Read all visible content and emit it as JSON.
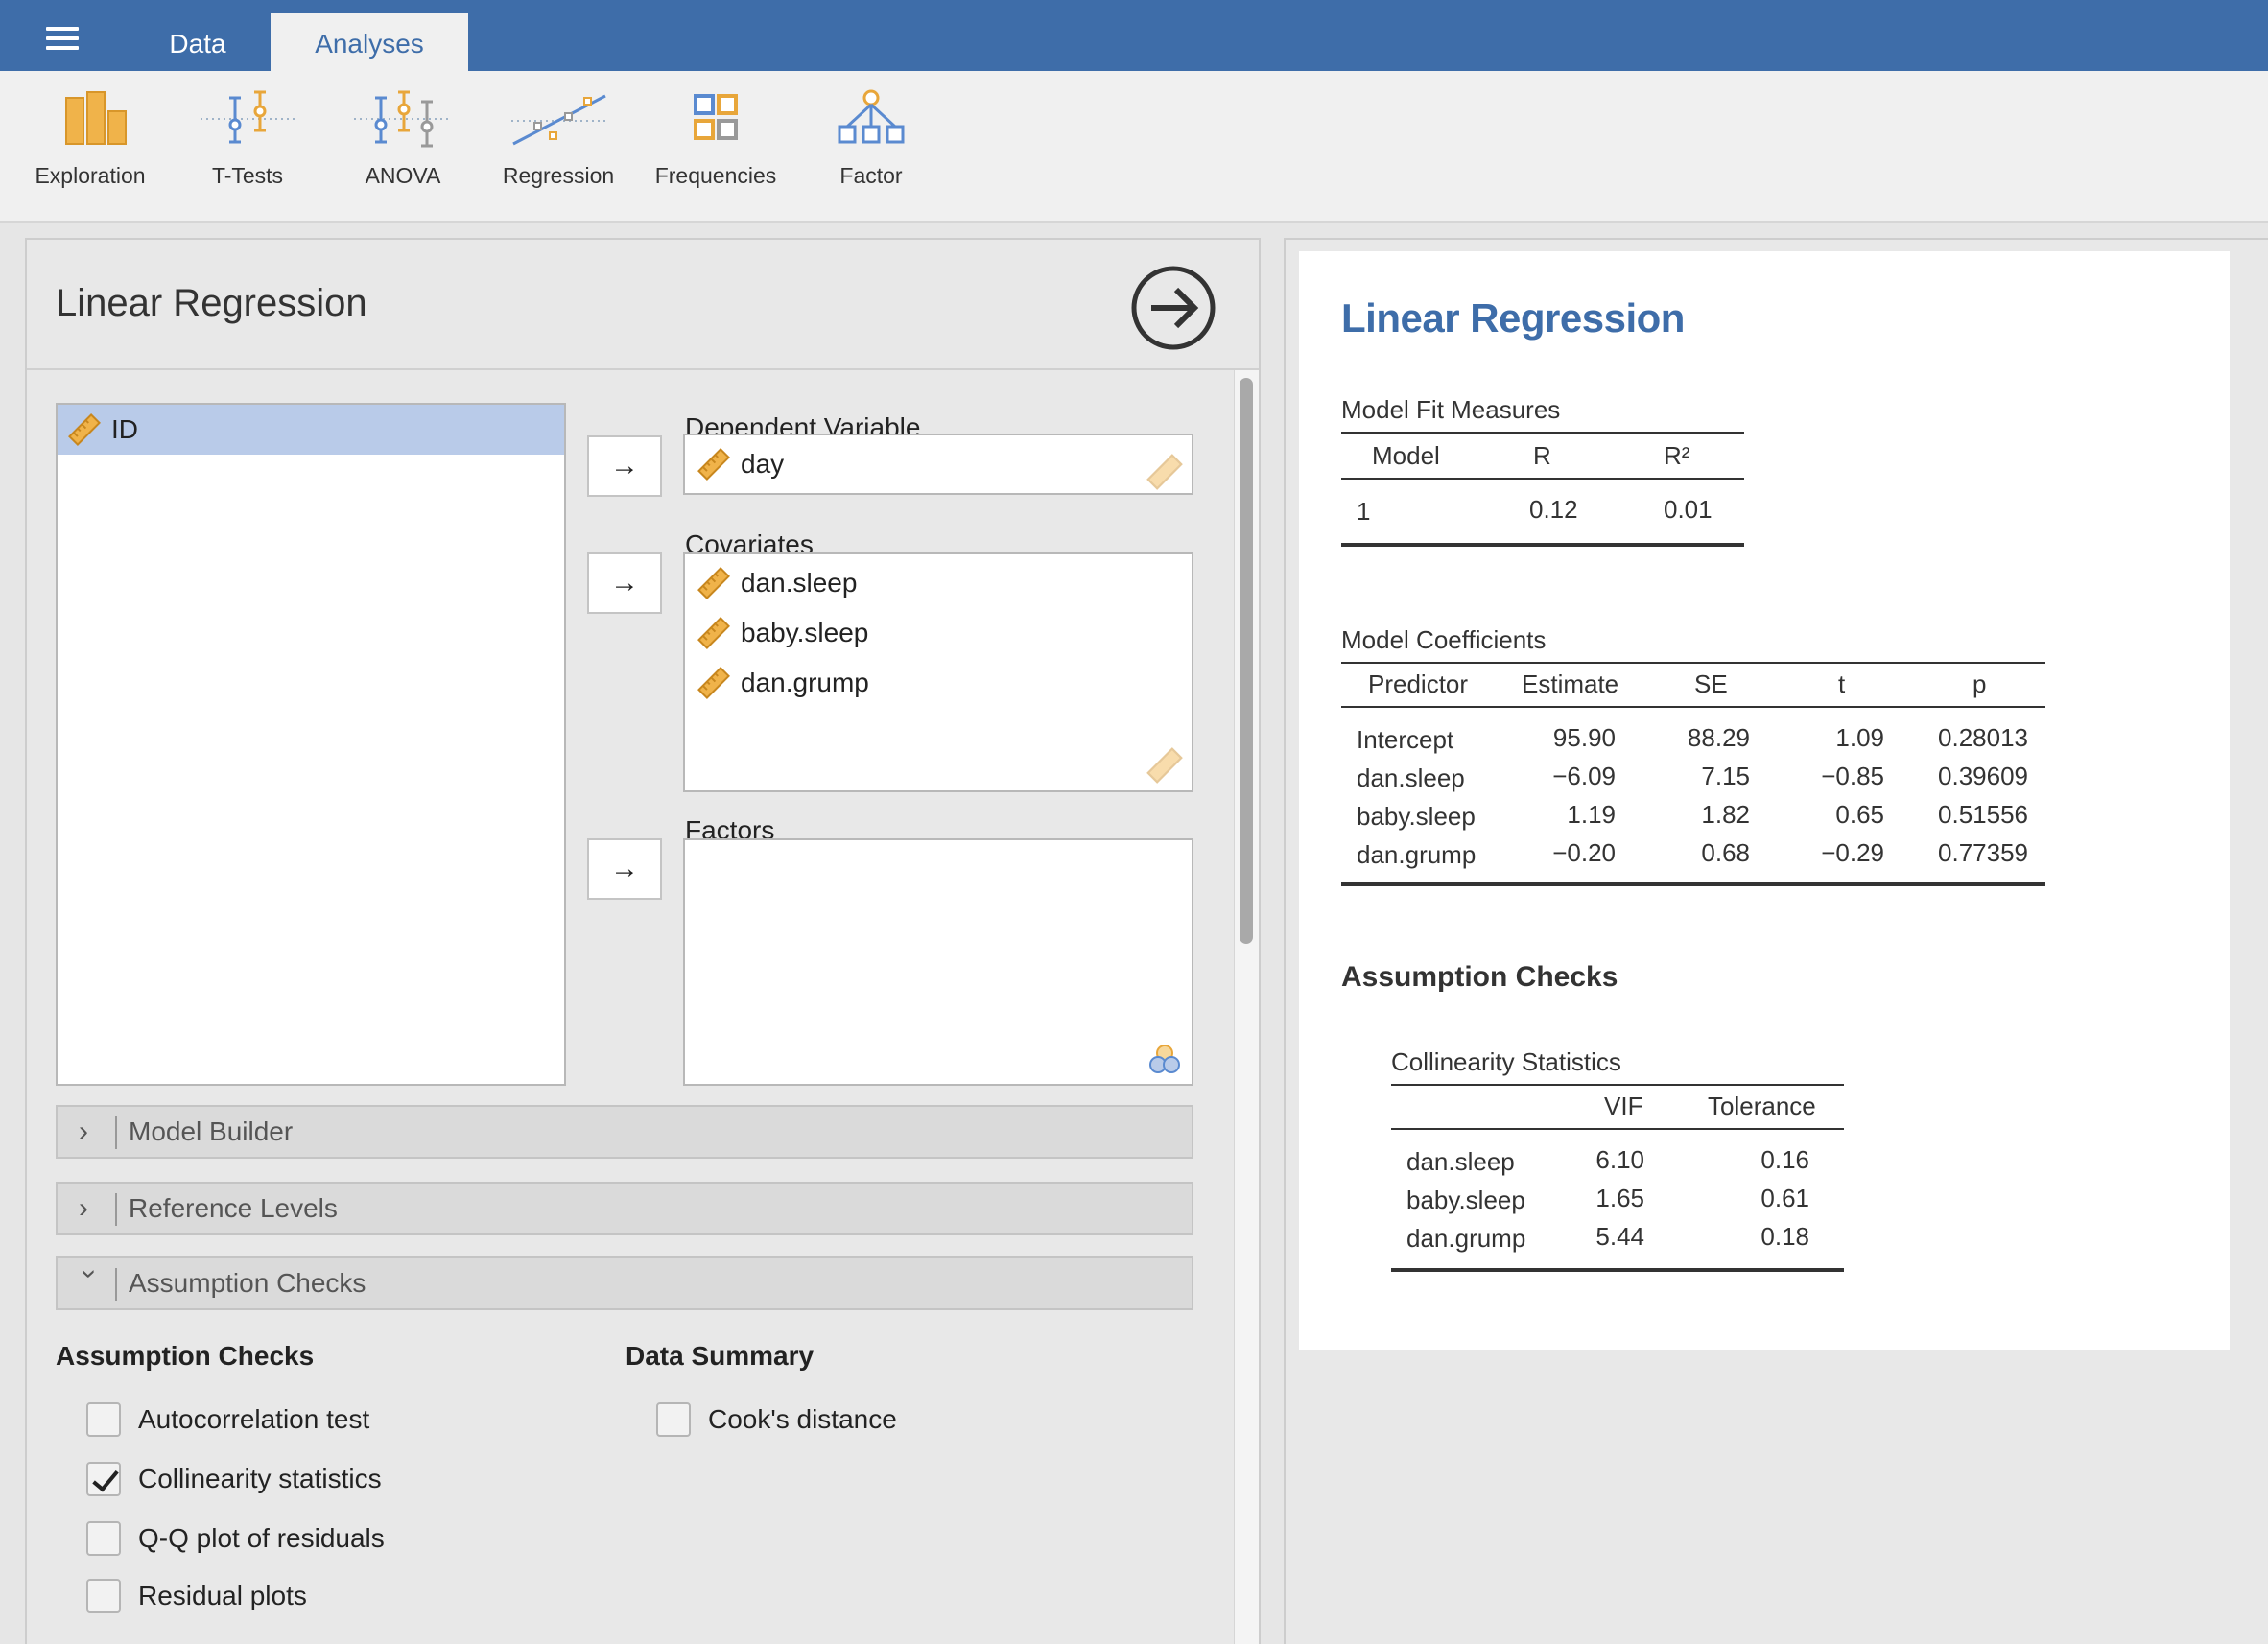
{
  "topbar": {
    "tabs": [
      {
        "label": "Data",
        "active": false
      },
      {
        "label": "Analyses",
        "active": true
      }
    ],
    "accent_color": "#3e6da9"
  },
  "ribbon": {
    "buttons": [
      {
        "label": "Exploration",
        "icon": "exploration-icon"
      },
      {
        "label": "T-Tests",
        "icon": "t-tests-icon"
      },
      {
        "label": "ANOVA",
        "icon": "anova-icon"
      },
      {
        "label": "Regression",
        "icon": "regression-icon"
      },
      {
        "label": "Frequencies",
        "icon": "frequencies-icon"
      },
      {
        "label": "Factor",
        "icon": "factor-icon"
      }
    ]
  },
  "options": {
    "title": "Linear Regression",
    "variables": [
      {
        "name": "ID",
        "selected": true
      }
    ],
    "dependent_label": "Dependent Variable",
    "dependent": "day",
    "covariates_label": "Covariates",
    "covariates": [
      "dan.sleep",
      "baby.sleep",
      "dan.grump"
    ],
    "factors_label": "Factors",
    "factors": [],
    "collapsibles": [
      {
        "label": "Model Builder",
        "expanded": false
      },
      {
        "label": "Reference Levels",
        "expanded": false
      },
      {
        "label": "Assumption Checks",
        "expanded": true
      }
    ],
    "assumption_head": "Assumption Checks",
    "assumption_checks": [
      {
        "label": "Autocorrelation test",
        "checked": false
      },
      {
        "label": "Collinearity statistics",
        "checked": true
      },
      {
        "label": "Q-Q plot of residuals",
        "checked": false
      },
      {
        "label": "Residual plots",
        "checked": false
      }
    ],
    "summary_head": "Data Summary",
    "data_summary": [
      {
        "label": "Cook's distance",
        "checked": false
      }
    ]
  },
  "results": {
    "title": "Linear Regression",
    "fit": {
      "title": "Model Fit Measures",
      "headers": [
        "Model",
        "R",
        "R²"
      ],
      "rows": [
        [
          "1",
          "0.12",
          "0.01"
        ]
      ]
    },
    "coef": {
      "title": "Model Coefficients",
      "headers": [
        "Predictor",
        "Estimate",
        "SE",
        "t",
        "p"
      ],
      "rows": [
        [
          "Intercept",
          "95.90",
          "88.29",
          "1.09",
          "0.28013"
        ],
        [
          "dan.sleep",
          "−6.09",
          "7.15",
          "−0.85",
          "0.39609"
        ],
        [
          "baby.sleep",
          "1.19",
          "1.82",
          "0.65",
          "0.51556"
        ],
        [
          "dan.grump",
          "−0.20",
          "0.68",
          "−0.29",
          "0.77359"
        ]
      ]
    },
    "assumption_title": "Assumption Checks",
    "collin": {
      "title": "Collinearity Statistics",
      "headers": [
        "",
        "VIF",
        "Tolerance"
      ],
      "rows": [
        [
          "dan.sleep",
          "6.10",
          "0.16"
        ],
        [
          "baby.sleep",
          "1.65",
          "0.61"
        ],
        [
          "dan.grump",
          "5.44",
          "0.18"
        ]
      ]
    }
  }
}
